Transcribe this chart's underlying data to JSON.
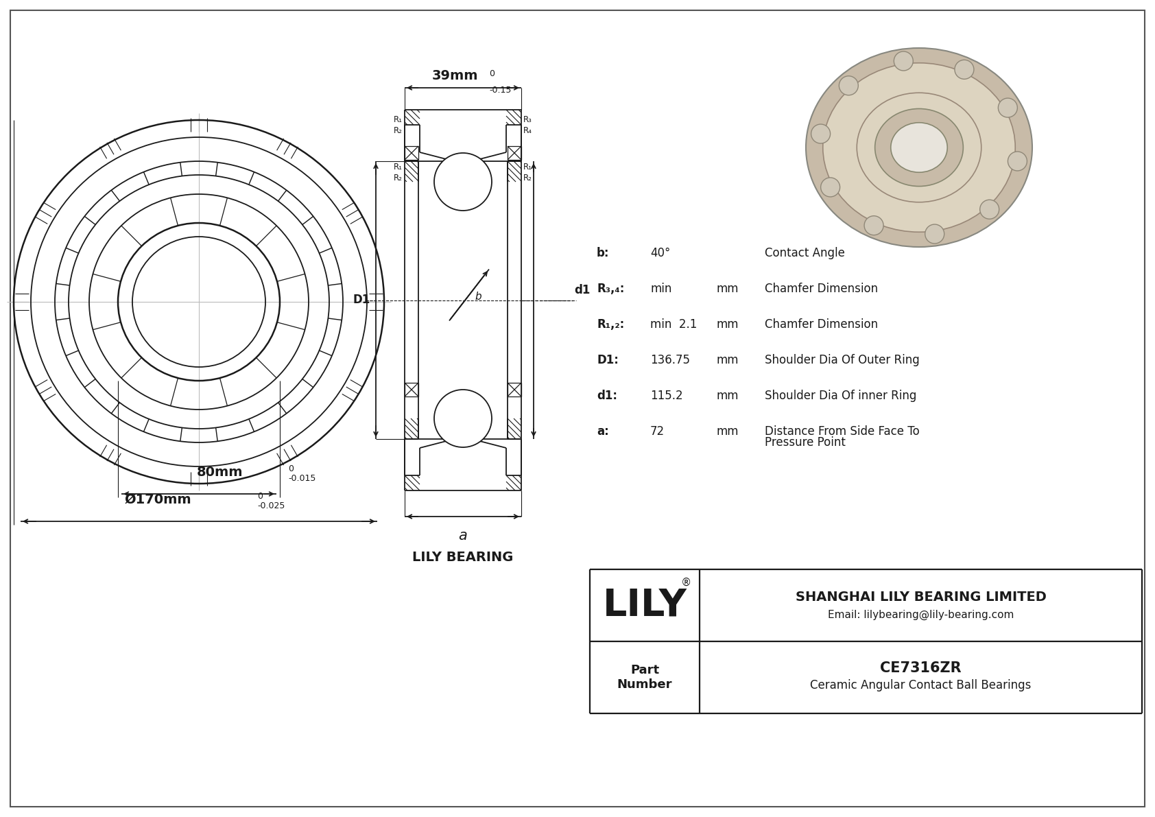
{
  "bg_color": "#ffffff",
  "line_color": "#1a1a1a",
  "outer_diameter_label": "Ø170mm",
  "outer_tol_upper": "0",
  "outer_tol_lower": "-0.025",
  "inner_diameter_label": "80mm",
  "inner_tol_upper": "0",
  "inner_tol_lower": "-0.015",
  "width_label": "39mm",
  "width_tol_upper": "0",
  "width_tol_lower": "-0.15",
  "params": [
    {
      "label": "b:",
      "value": "40°",
      "unit": "",
      "description": "Contact Angle"
    },
    {
      "label": "R₃,₄:",
      "value": "min",
      "unit": "mm",
      "description": "Chamfer Dimension"
    },
    {
      "label": "R₁,₂:",
      "value": "min  2.1",
      "unit": "mm",
      "description": "Chamfer Dimension"
    },
    {
      "label": "D1:",
      "value": "136.75",
      "unit": "mm",
      "description": "Shoulder Dia Of Outer Ring"
    },
    {
      "label": "d1:",
      "value": "115.2",
      "unit": "mm",
      "description": "Shoulder Dia Of inner Ring"
    },
    {
      "label": "a:",
      "value": "72",
      "unit": "mm",
      "description": "Distance From Side Face To\nPressure Point"
    }
  ],
  "company_name": "LILY",
  "company_reg": "®",
  "company_full": "SHANGHAI LILY BEARING LIMITED",
  "company_email": "Email: lilybearing@lily-bearing.com",
  "part_label": "Part\nNumber",
  "part_number": "CE7316ZR",
  "part_desc": "Ceramic Angular Contact Ball Bearings",
  "lily_bearing_label": "LILY BEARING",
  "dim_a_label": "a",
  "D1_label": "D1",
  "d1_label": "d1"
}
